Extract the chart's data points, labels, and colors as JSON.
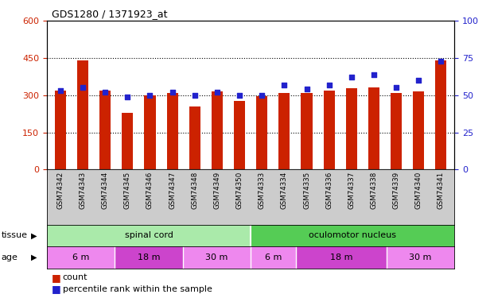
{
  "title": "GDS1280 / 1371923_at",
  "samples": [
    "GSM74342",
    "GSM74343",
    "GSM74344",
    "GSM74345",
    "GSM74346",
    "GSM74347",
    "GSM74348",
    "GSM74349",
    "GSM74350",
    "GSM74333",
    "GSM74334",
    "GSM74335",
    "GSM74336",
    "GSM74337",
    "GSM74338",
    "GSM74339",
    "GSM74340",
    "GSM74341"
  ],
  "counts": [
    318,
    440,
    318,
    230,
    298,
    310,
    255,
    315,
    278,
    295,
    308,
    310,
    318,
    327,
    330,
    308,
    315,
    440
  ],
  "percentile_ranks": [
    53,
    55,
    52,
    49,
    50,
    52,
    50,
    52,
    50,
    50,
    57,
    54,
    57,
    62,
    64,
    55,
    60,
    73
  ],
  "ylim_left": [
    0,
    600
  ],
  "ylim_right": [
    0,
    100
  ],
  "yticks_left": [
    0,
    150,
    300,
    450,
    600
  ],
  "yticks_right": [
    0,
    25,
    50,
    75,
    100
  ],
  "bar_color": "#cc2200",
  "dot_color": "#2222cc",
  "tissue_groups": [
    {
      "label": "spinal cord",
      "start": 0,
      "end": 9,
      "color": "#aaeaaa"
    },
    {
      "label": "oculomotor nucleus",
      "start": 9,
      "end": 18,
      "color": "#55cc55"
    }
  ],
  "age_col_map": [
    {
      "color": "#ee88ee",
      "start": 0,
      "end": 3,
      "label": "6 m"
    },
    {
      "color": "#cc44cc",
      "start": 3,
      "end": 6,
      "label": "18 m"
    },
    {
      "color": "#ee88ee",
      "start": 6,
      "end": 9,
      "label": "30 m"
    },
    {
      "color": "#ee88ee",
      "start": 9,
      "end": 11,
      "label": "6 m"
    },
    {
      "color": "#cc44cc",
      "start": 11,
      "end": 15,
      "label": "18 m"
    },
    {
      "color": "#ee88ee",
      "start": 15,
      "end": 18,
      "label": "30 m"
    }
  ],
  "legend_count_label": "count",
  "legend_pct_label": "percentile rank within the sample",
  "tissue_label": "tissue",
  "age_label": "age",
  "bg_color": "#ffffff",
  "xlabel_bg": "#cccccc",
  "bar_width": 0.5
}
